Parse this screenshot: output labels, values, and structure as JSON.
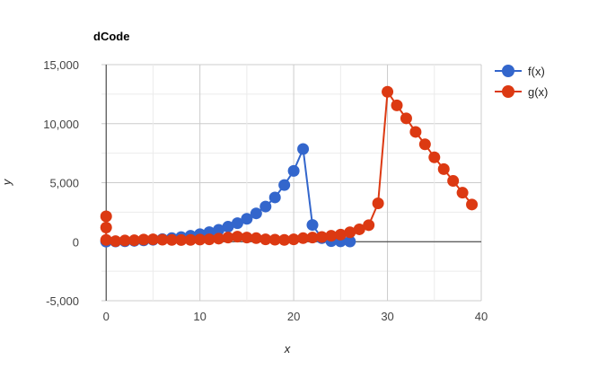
{
  "chart_data": {
    "type": "line",
    "title": "dCode",
    "xlabel": "x",
    "ylabel": "y",
    "xlim": [
      -0.5,
      40
    ],
    "ylim": [
      -5000,
      15000
    ],
    "x_ticks": [
      0,
      10,
      20,
      30,
      40
    ],
    "x_tick_labels": [
      "0",
      "10",
      "20",
      "30",
      "40"
    ],
    "y_ticks": [
      -5000,
      0,
      5000,
      10000,
      15000
    ],
    "y_tick_labels": [
      "-5,000",
      "0",
      "5,000",
      "10,000",
      "15,000"
    ],
    "grid": true,
    "legend_position": "right",
    "series": [
      {
        "name": "f(x)",
        "color": "#3366cc",
        "x": [
          0,
          1,
          2,
          3,
          4,
          5,
          6,
          7,
          8,
          9,
          10,
          11,
          12,
          13,
          14,
          15,
          16,
          17,
          18,
          19,
          20,
          21,
          22,
          23,
          24,
          25,
          26
        ],
        "y": [
          10,
          20,
          40,
          70,
          110,
          160,
          220,
          300,
          390,
          500,
          640,
          810,
          1010,
          1270,
          1570,
          1940,
          2400,
          2980,
          3750,
          4800,
          6000,
          7850,
          1420,
          300,
          50,
          30,
          20
        ]
      },
      {
        "name": "g(x)",
        "color": "#dc3912",
        "x": [
          0,
          0,
          0,
          1,
          2,
          3,
          4,
          5,
          6,
          7,
          8,
          9,
          10,
          11,
          12,
          13,
          14,
          15,
          16,
          17,
          18,
          19,
          20,
          21,
          22,
          23,
          24,
          25,
          26,
          27,
          28,
          29,
          30,
          31,
          32,
          33,
          34,
          35,
          36,
          37,
          38,
          39
        ],
        "y": [
          2150,
          1200,
          150,
          50,
          100,
          120,
          180,
          200,
          170,
          150,
          140,
          150,
          180,
          200,
          260,
          350,
          430,
          350,
          300,
          200,
          170,
          150,
          200,
          300,
          350,
          400,
          500,
          600,
          800,
          1050,
          1400,
          3250,
          12700,
          11550,
          10450,
          9300,
          8250,
          7150,
          6150,
          5150,
          4150,
          3150
        ]
      }
    ]
  }
}
